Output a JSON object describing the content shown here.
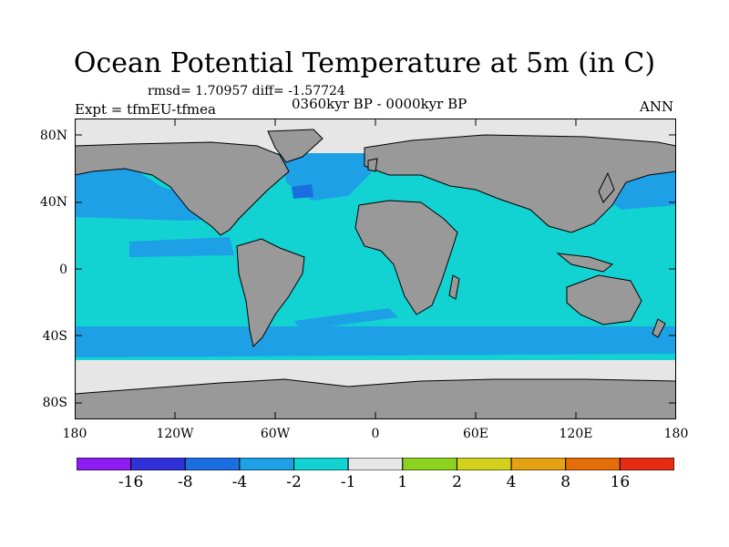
{
  "title": "Ocean Potential Temperature at 5m (in C)",
  "stats": "rmsd= 1.70957 diff= -1.57724",
  "experiment": "Expt = tfmEU-tfmea",
  "period": "0360kyr BP - 0000kyr BP",
  "season": "ANN",
  "map": {
    "projection": "cylindrical equidistant",
    "lon_range": [
      -180,
      180
    ],
    "lat_range": [
      -90,
      90
    ],
    "x_ticks": [
      "180",
      "120W",
      "60W",
      "0",
      "60E",
      "120E",
      "180"
    ],
    "y_ticks": [
      "80N",
      "40N",
      "0",
      "40S",
      "80S"
    ],
    "land_color": "#999999",
    "coast_color": "#000000",
    "field": "temperature difference",
    "dominant_anomaly_band": "-2 to -1",
    "polar_band": "-1 to 1"
  },
  "colorbar": {
    "colors": [
      "#8c1cf0",
      "#3030d8",
      "#1a6ee0",
      "#1ea0e6",
      "#12d2d2",
      "#e6e6e6",
      "#8cd21e",
      "#d2d21e",
      "#e6a014",
      "#e66e0a",
      "#e62d14"
    ],
    "labels": [
      "-16",
      "-8",
      "-4",
      "-2",
      "-1",
      "1",
      "2",
      "4",
      "8",
      "16"
    ]
  }
}
